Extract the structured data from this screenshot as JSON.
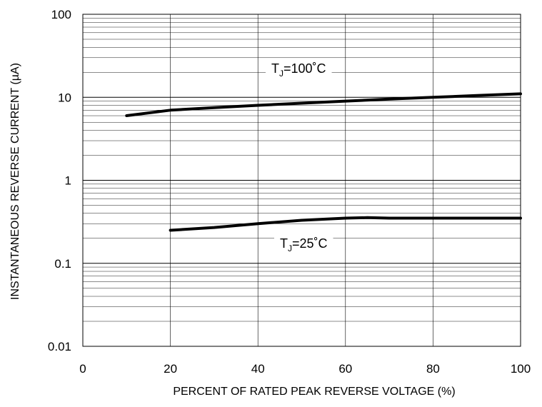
{
  "chart_data": {
    "type": "line",
    "title": "",
    "xlabel": "PERCENT OF RATED PEAK REVERSE VOLTAGE (%)",
    "ylabel": "INSTANTANEOUS REVERSE CURRENT (µA)",
    "xlim": [
      0,
      100
    ],
    "ylim": [
      0.01,
      100
    ],
    "yscale": "log",
    "grid": true,
    "x_ticks": [
      "0",
      "20",
      "40",
      "60",
      "80",
      "100"
    ],
    "y_ticks": [
      "0.01",
      "0.1",
      "1",
      "10",
      "100"
    ],
    "series": [
      {
        "name": "T_J=100°C",
        "label_main": "T",
        "label_sub": "J",
        "label_rest": "=100˚C",
        "x": [
          10,
          20,
          30,
          40,
          50,
          60,
          70,
          80,
          90,
          100
        ],
        "y": [
          6.0,
          7.0,
          7.5,
          8.0,
          8.5,
          9.0,
          9.5,
          10.0,
          10.5,
          11.0
        ]
      },
      {
        "name": "T_J=25°C",
        "label_main": "T",
        "label_sub": "J",
        "label_rest": "=25˚C",
        "x": [
          20,
          30,
          40,
          50,
          60,
          65,
          70,
          80,
          90,
          100
        ],
        "y": [
          0.25,
          0.27,
          0.3,
          0.33,
          0.35,
          0.355,
          0.35,
          0.35,
          0.35,
          0.35
        ]
      }
    ],
    "color": "#000000"
  }
}
